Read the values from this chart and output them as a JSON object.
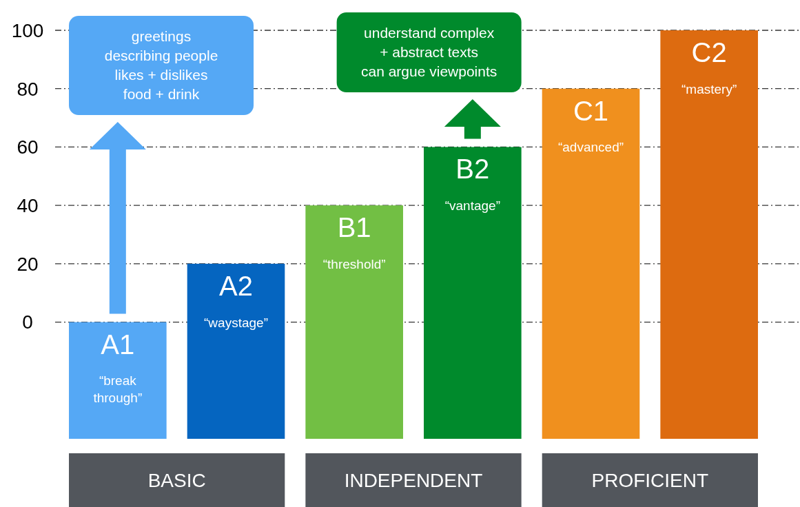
{
  "chart_data": {
    "type": "bar",
    "categories": [
      "A1",
      "A2",
      "B1",
      "B2",
      "C1",
      "C2"
    ],
    "base": [
      -40,
      -40,
      -40,
      -40,
      -40,
      -40
    ],
    "values": [
      40,
      60,
      80,
      100,
      120,
      140
    ],
    "colors": [
      "#55a8f5",
      "#0565c0",
      "#72bf44",
      "#008a2c",
      "#f0901e",
      "#dd6b10"
    ],
    "ylim": [
      -40,
      100
    ],
    "yticks": [
      0,
      20,
      40,
      60,
      80,
      100
    ],
    "grid": "y",
    "line_style": "dashed",
    "annotations": [
      "“break\nthrough”",
      "“waystage”",
      "“threshold”",
      "“vantage”",
      "“advanced”",
      "“mastery”",
      "greetings\ndescribing people\nlikes + dislikes\nfood + drink",
      "understand complex\n+ abstract texts\ncan argue viewpoints",
      "BASIC",
      "INDEPENDENT",
      "PROFICIENT"
    ]
  }
}
